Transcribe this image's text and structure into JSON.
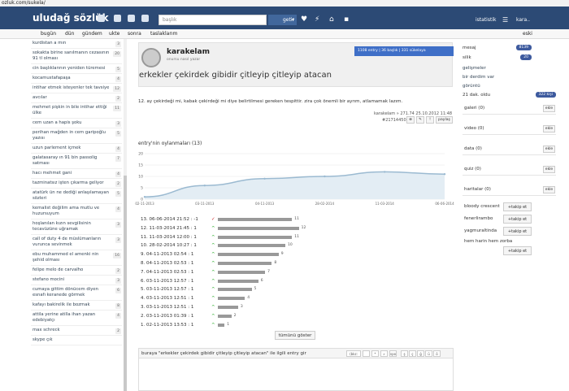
{
  "url": "ozluk.com/sukela/",
  "brand": "uludağ sözlük",
  "search": {
    "placeholder": "başlık",
    "button": "getir",
    "arrow": "▾"
  },
  "header_right": {
    "istatistik": "istatistik",
    "user": "kara.."
  },
  "subnav": {
    "items": [
      "bugün",
      "dün",
      "gündem",
      "ukte",
      "sonra",
      "taslaklarım"
    ],
    "right": "eski"
  },
  "left_list": [
    {
      "title": "kurdistan a mın",
      "count": "3"
    },
    {
      "title": "sokakta birine sanılmanın cezasının 91 tl olması",
      "count": "20"
    },
    {
      "title": "cin başlıklarının yeniden türemesi",
      "count": "5"
    },
    {
      "title": "kocamustafapaşa",
      "count": "4"
    },
    {
      "title": "intihar etmek isteyenler tek tavsiye",
      "count": "12"
    },
    {
      "title": "avcılar",
      "count": "2"
    },
    {
      "title": "mehmet pişkin in bile intihar ettiği ülke",
      "count": "11"
    },
    {
      "title": "cem uzan a hapis şoku",
      "count": "3"
    },
    {
      "title": "perihan mağden in cem garipoğlu yazısı",
      "count": "5"
    },
    {
      "title": "uzun parlement içmek",
      "count": "4"
    },
    {
      "title": "galatasaray ın 91 bin passolig satması",
      "count": "7"
    },
    {
      "title": "hacı mehmet gani",
      "count": "4"
    },
    {
      "title": "tazminatsız işten çıkarma geliyor",
      "count": "2"
    },
    {
      "title": "atatürk ün ne dediği anlaşılamayan sözleri",
      "count": "5"
    },
    {
      "title": "kemalist değilim ama mutlu ve huzursuyum",
      "count": "4"
    },
    {
      "title": "hoşlanılan kızın sevgilisinin tecavüzüne uğramak",
      "count": "3"
    },
    {
      "title": "call of duty 4 de müslümanların vurunca sevinmek",
      "count": "3"
    },
    {
      "title": "ebu muhammed el amenki nin şehid olması",
      "count": "16"
    },
    {
      "title": "felipe melo de carvalho",
      "count": "2"
    },
    {
      "title": "stefano mocini",
      "count": "3"
    },
    {
      "title": "cumaya gittim dönücem diyen esnafı keranede görmek",
      "count": "6"
    },
    {
      "title": "kafayı bakirelik ile bozmak",
      "count": "8"
    },
    {
      "title": "attila yerine atilla ihan yazan edebiyatçı",
      "count": "4"
    },
    {
      "title": "max schreck",
      "count": "2"
    },
    {
      "title": "skype çık",
      "count": ""
    }
  ],
  "profile": {
    "name": "karakelam",
    "subtitle": "onursu nasıl yazar",
    "stats": "1108 entry  |  36 başlık  |  331 sükelaya"
  },
  "entry": {
    "title": "erkekler çekirdek gibidir çitleyip çitleyip atacan",
    "text": "12.  ay çekirdeği mi, kabak çekirdeği mi diye belirtilmesi gereken tespittir. zira çok önemli bir ayrım, atlamamak lazım.",
    "author_line": "karakelam  » 271.74  25.10.2012 11:48",
    "id": "#21714450",
    "buttons": [
      "⊕",
      "✎",
      "!",
      "paylaş"
    ]
  },
  "chart_data": {
    "type": "line",
    "title": "entry'nin oylanmaları (13)",
    "x": [
      "02-11-2013",
      "03-11-2013",
      "04-11-2013",
      "28-02-2014",
      "11-03-2014",
      "06-06-2014"
    ],
    "tick_labels": [
      "02-11-2013",
      "03-11-2013",
      "04-11-2013",
      "28-02-2014",
      "11-03-2014",
      "06-06-2014"
    ],
    "values": [
      1,
      6,
      9,
      10,
      12,
      11
    ],
    "ylim": [
      0,
      20
    ],
    "yticks": [
      0,
      5,
      10,
      15,
      20
    ],
    "grid": true,
    "legend": "none",
    "colors": {
      "line": "#9bbad1",
      "fill": "#e3edf4"
    }
  },
  "votes": [
    {
      "label": "13.  06-06-2014 21:52 : -1",
      "arrow": "down",
      "value": 11
    },
    {
      "label": "12.  11-03-2014 21:45 : 1",
      "arrow": "up",
      "value": 12
    },
    {
      "label": "11.  11-03-2014 12:00 : 1",
      "arrow": "up",
      "value": 11
    },
    {
      "label": "10.  28-02-2014 10:27 : 1",
      "arrow": "up",
      "value": 10
    },
    {
      "label": "9.  04-11-2013 02:54 : 1",
      "arrow": "up",
      "value": 9
    },
    {
      "label": "8.  04-11-2013 02:53 : 1",
      "arrow": "up",
      "value": 8
    },
    {
      "label": "7.  04-11-2013 02:53 : 1",
      "arrow": "up",
      "value": 7
    },
    {
      "label": "6.  03-11-2013 12:57 : 1",
      "arrow": "up",
      "value": 6
    },
    {
      "label": "5.  03-11-2013 12:57 : 1",
      "arrow": "up",
      "value": 5
    },
    {
      "label": "4.  03-11-2013 12:51 : 1",
      "arrow": "up",
      "value": 4
    },
    {
      "label": "3.  03-11-2013 12:51 : 1",
      "arrow": "up",
      "value": 3
    },
    {
      "label": "2.  03-11-2013 01:39 : 1",
      "arrow": "up",
      "value": 2
    },
    {
      "label": "1.  02-11-2013 13:53 : 1",
      "arrow": "up",
      "value": 1
    }
  ],
  "show_all": "tümünü göster",
  "editor": {
    "prompt": "buraya \"erkekler çekirdek gibidir çitleyip çitleyip atacan\" ile ilgili entry gir",
    "buttons": [
      "(bkz:",
      "",
      "*",
      "»",
      "spo",
      "ş",
      "ç",
      "ğ",
      "ü",
      "ö"
    ]
  },
  "right": {
    "mesaj": {
      "label": "mesaj",
      "count": "8139"
    },
    "silik": {
      "label": "silik",
      "count": "20"
    },
    "links": [
      "gelişmeler",
      "bir derdim var",
      "görüntü"
    ],
    "online": {
      "label": "21 dak. oldu",
      "count": "322 kişi"
    },
    "sections": [
      {
        "label": "galeri (0)",
        "button": "ekle"
      },
      {
        "label": "video (0)",
        "button": "ekle"
      },
      {
        "label": "data (0)",
        "button": "ekle"
      },
      {
        "label": "quiz (0)",
        "button": "ekle"
      },
      {
        "label": "haritalar (0)",
        "button": "ekle"
      }
    ],
    "follow": [
      {
        "name": "bloody crescent",
        "button": "+takip et"
      },
      {
        "name": "fenerlirambo",
        "button": "+takip et"
      },
      {
        "name": "yagmuraltinda",
        "button": "+takip et"
      },
      {
        "name": "hem harin hem zorba",
        "button": "+takip et"
      }
    ]
  }
}
